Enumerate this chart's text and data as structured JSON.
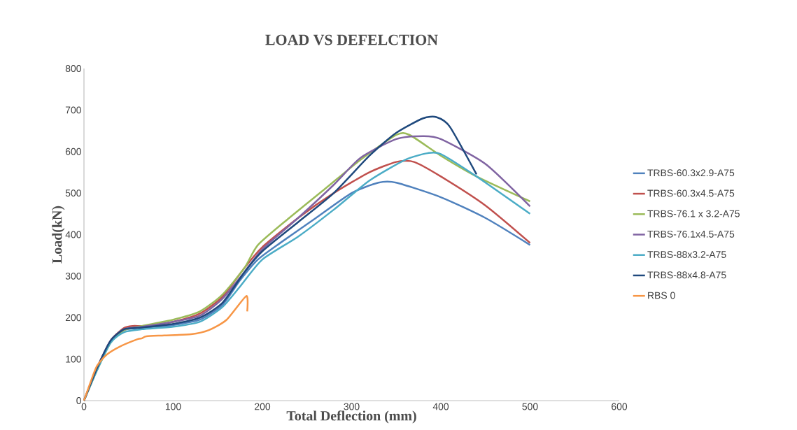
{
  "chart_data": {
    "type": "line",
    "title": "LOAD VS DEFELCTION",
    "xlabel": "Total Deflection (mm)",
    "ylabel": "Load(kN)",
    "xlim": [
      0,
      600
    ],
    "xticks": [
      0,
      100,
      200,
      300,
      400,
      500,
      600
    ],
    "ylim": [
      0,
      800
    ],
    "yticks": [
      0,
      100,
      200,
      300,
      400,
      500,
      600,
      700,
      800
    ],
    "grid": false,
    "legend": "right",
    "marker": "none",
    "line_style": "solid",
    "series": [
      {
        "name": "TRBS-60.3x2.9-A75",
        "color": "#4f81bd",
        "x": [
          0,
          15,
          30,
          45,
          60,
          80,
          100,
          130,
          155,
          175,
          195,
          220,
          260,
          300,
          330,
          350,
          400,
          450,
          500
        ],
        "values": [
          0,
          80,
          140,
          170,
          175,
          178,
          182,
          195,
          230,
          290,
          340,
          380,
          440,
          500,
          525,
          525,
          490,
          440,
          375
        ]
      },
      {
        "name": "TRBS-60.3x4.5-A75",
        "color": "#c0504d",
        "x": [
          0,
          15,
          30,
          45,
          55,
          70,
          100,
          130,
          155,
          180,
          200,
          240,
          280,
          320,
          350,
          370,
          400,
          450,
          500
        ],
        "values": [
          0,
          80,
          145,
          175,
          180,
          180,
          190,
          210,
          250,
          320,
          370,
          440,
          500,
          550,
          575,
          575,
          540,
          470,
          380
        ]
      },
      {
        "name": "TRBS-76.1 x 3.2-A75",
        "color": "#9bbb59",
        "x": [
          0,
          15,
          30,
          45,
          65,
          100,
          130,
          155,
          180,
          195,
          230,
          270,
          310,
          350,
          365,
          400,
          440,
          500
        ],
        "values": [
          0,
          75,
          140,
          170,
          180,
          195,
          215,
          255,
          320,
          375,
          440,
          510,
          580,
          640,
          640,
          590,
          540,
          480
        ]
      },
      {
        "name": "TRBS-76.1x4.5-A75",
        "color": "#8064a2",
        "x": [
          0,
          15,
          30,
          45,
          65,
          100,
          130,
          155,
          180,
          200,
          240,
          280,
          310,
          350,
          380,
          400,
          450,
          500
        ],
        "values": [
          0,
          80,
          145,
          172,
          178,
          190,
          205,
          245,
          310,
          365,
          440,
          520,
          585,
          630,
          637,
          630,
          570,
          468
        ]
      },
      {
        "name": "TRBS-88x3.2-A75",
        "color": "#4bacc6",
        "x": [
          0,
          15,
          30,
          45,
          65,
          100,
          130,
          155,
          175,
          200,
          240,
          280,
          320,
          360,
          385,
          400,
          440,
          500
        ],
        "values": [
          0,
          75,
          140,
          165,
          172,
          178,
          190,
          225,
          275,
          340,
          395,
          460,
          530,
          580,
          596,
          594,
          540,
          450
        ]
      },
      {
        "name": "TRBS-88x4.8-A75",
        "color": "#1f497d",
        "x": [
          0,
          15,
          30,
          45,
          60,
          100,
          130,
          155,
          180,
          200,
          240,
          280,
          320,
          350,
          380,
          395,
          410,
          440
        ],
        "values": [
          0,
          80,
          145,
          172,
          175,
          185,
          200,
          235,
          310,
          360,
          430,
          500,
          590,
          645,
          680,
          683,
          660,
          545
        ]
      },
      {
        "name": "RBS 0",
        "color": "#f79646",
        "x": [
          0,
          10,
          15,
          25,
          40,
          60,
          65,
          70,
          90,
          120,
          140,
          160,
          182,
          183
        ],
        "values": [
          0,
          60,
          85,
          110,
          130,
          148,
          150,
          155,
          157,
          160,
          170,
          195,
          252,
          215
        ]
      }
    ]
  }
}
